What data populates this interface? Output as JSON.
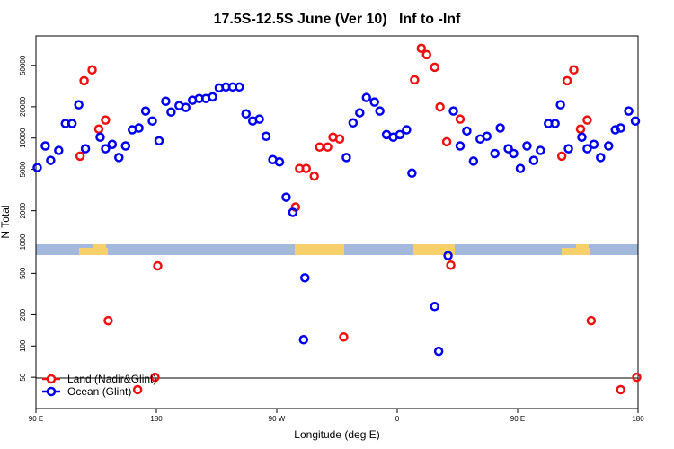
{
  "chart_data": {
    "type": "scatter",
    "title": "17.5S-12.5S June (Ver 10)   Inf to -Inf",
    "x_label": "Longitude (deg E)",
    "y_label": "N Total",
    "xlim": [
      90,
      540
    ],
    "xticks": [
      {
        "value": 90,
        "label": "90 E"
      },
      180,
      {
        "value": 270,
        "label": "90 W"
      },
      {
        "value": 360,
        "label": "0"
      },
      {
        "value": 450,
        "label": "90 E"
      },
      {
        "value": 540,
        "label": "180"
      }
    ],
    "ylim": [
      25,
      96000
    ],
    "yticks": [
      50,
      100,
      200,
      500,
      1000,
      2000,
      5000,
      10000,
      20000,
      50000
    ],
    "y_log": true,
    "legend": "bottom-left",
    "series": [
      {
        "name": "Land (Nadir&Glint)",
        "color": "#ee1111",
        "x": [
          123,
          126,
          132,
          137,
          142,
          144,
          166,
          179,
          181,
          284,
          287,
          292,
          298,
          302,
          308,
          312,
          317,
          320,
          373,
          378,
          382,
          388,
          392,
          397,
          400,
          407,
          483,
          487,
          492,
          497,
          502,
          505,
          527,
          539
        ],
        "values": [
          6700,
          35600,
          45300,
          12200,
          14900,
          175,
          38,
          50,
          590,
          2170,
          5100,
          5100,
          4300,
          8200,
          8200,
          10200,
          9800,
          122,
          36300,
          73000,
          63400,
          48000,
          19900,
          9200,
          600,
          15200,
          6700,
          35600,
          45300,
          12200,
          14900,
          175,
          38,
          50
        ]
      },
      {
        "name": "Ocean (Glint)",
        "color": "#0000ee",
        "x": [
          91,
          97,
          101,
          107,
          112,
          117,
          122,
          127,
          138,
          142,
          147,
          152,
          157,
          162,
          167,
          172,
          177,
          182,
          187,
          191,
          197,
          202,
          207,
          212,
          217,
          222,
          227,
          232,
          237,
          242,
          247,
          252,
          257,
          262,
          267,
          272,
          277,
          282,
          290,
          291,
          322,
          327,
          332,
          337,
          343,
          347,
          352,
          357,
          362,
          367,
          371,
          388,
          391,
          398,
          402,
          407,
          412,
          417,
          422,
          427,
          433,
          437,
          443,
          447,
          452,
          457,
          462,
          467,
          473,
          478,
          482,
          488,
          498,
          502,
          507,
          512,
          518,
          523,
          527,
          533,
          538
        ],
        "values": [
          5200,
          8400,
          6100,
          7600,
          13800,
          13800,
          20900,
          7900,
          10200,
          7900,
          8700,
          6500,
          8400,
          12000,
          12500,
          18200,
          14600,
          9400,
          22600,
          17800,
          20500,
          19700,
          23100,
          24000,
          24000,
          24900,
          30400,
          31000,
          31000,
          31000,
          17100,
          14600,
          15200,
          10400,
          6200,
          5900,
          2700,
          1930,
          115,
          453,
          6500,
          14000,
          17500,
          24500,
          22200,
          18200,
          10800,
          10200,
          10800,
          12000,
          4600,
          240,
          89,
          740,
          18200,
          8400,
          11700,
          6000,
          9800,
          10400,
          7100,
          12500,
          7900,
          7100,
          5100,
          8400,
          6100,
          7600,
          13800,
          13800,
          20900,
          7900,
          10200,
          7900,
          8700,
          6500,
          8400,
          12000,
          12500,
          18200,
          14600
        ]
      }
    ]
  }
}
